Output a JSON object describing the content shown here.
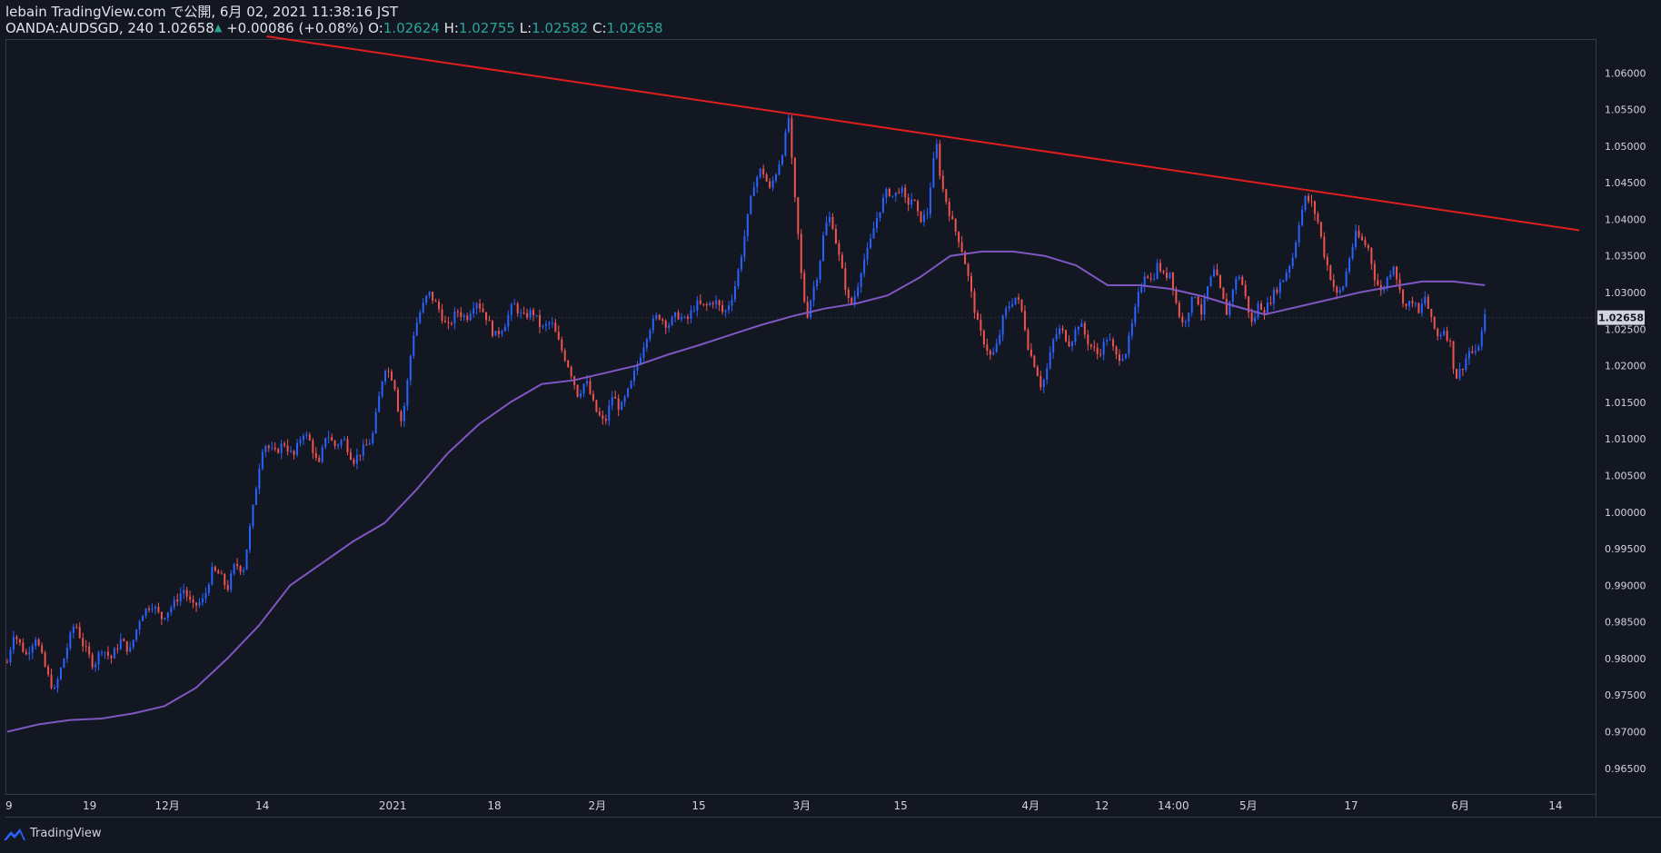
{
  "header": {
    "line1": "lebain TradingView.com で公開, 6月 02, 2021 11:38:16 JST",
    "symbol": "OANDA:AUDSGD, 240",
    "price": "1.02658",
    "change": "+0.00086 (+0.08%)",
    "o_label": "O:",
    "o_value": "1.02624",
    "h_label": "H:",
    "h_value": "1.02755",
    "l_label": "L:",
    "l_value": "1.02582",
    "c_label": "C:",
    "c_value": "1.02658"
  },
  "footer": {
    "brand": "TradingView",
    "icon": "tradingview-logo-icon"
  },
  "colors": {
    "background": "#131722",
    "up": "#2962ff",
    "down": "#ef5350",
    "trendline": "#e01e1e",
    "ma": "#7e57c2",
    "grid_border": "#363a45",
    "price_tag": "#d1d4dc"
  },
  "chart_data": {
    "type": "candlestick",
    "symbol": "OANDA:AUDSGD",
    "timeframe": "240",
    "last_price": 1.02658,
    "last_price_label": "1.02658",
    "ylim": [
      0.9615,
      1.0645
    ],
    "y_ticks": [
      "1.06000",
      "1.05500",
      "1.05000",
      "1.04500",
      "1.04000",
      "1.03500",
      "1.03000",
      "1.02500",
      "1.02000",
      "1.01500",
      "1.01000",
      "1.00500",
      "1.00000",
      "0.99500",
      "0.99000",
      "0.98500",
      "0.98000",
      "0.97500",
      "0.97000",
      "0.96500"
    ],
    "x_ticks": [
      {
        "label": "9",
        "pos": 0.0
      },
      {
        "label": "19",
        "pos": 0.0524
      },
      {
        "label": "12月",
        "pos": 0.1018
      },
      {
        "label": "14",
        "pos": 0.1623
      },
      {
        "label": "2021",
        "pos": 0.2452
      },
      {
        "label": "18",
        "pos": 0.3098
      },
      {
        "label": "2月",
        "pos": 0.3753
      },
      {
        "label": "15",
        "pos": 0.4399
      },
      {
        "label": "3月",
        "pos": 0.5054
      },
      {
        "label": "15",
        "pos": 0.5683
      },
      {
        "label": "4月",
        "pos": 0.651
      },
      {
        "label": "12",
        "pos": 0.6963
      },
      {
        "label": "14:00",
        "pos": 0.7418
      },
      {
        "label": "5月",
        "pos": 0.7895
      },
      {
        "label": "17",
        "pos": 0.8549
      },
      {
        "label": "6月",
        "pos": 0.9244
      },
      {
        "label": "14",
        "pos": 0.9849
      }
    ],
    "price_path": [
      [
        0.0,
        0.9795
      ],
      [
        0.004,
        0.9835
      ],
      [
        0.012,
        0.9805
      ],
      [
        0.018,
        0.983
      ],
      [
        0.026,
        0.9775
      ],
      [
        0.03,
        0.9755
      ],
      [
        0.038,
        0.9815
      ],
      [
        0.043,
        0.985
      ],
      [
        0.048,
        0.982
      ],
      [
        0.055,
        0.979
      ],
      [
        0.06,
        0.9815
      ],
      [
        0.066,
        0.98
      ],
      [
        0.072,
        0.9825
      ],
      [
        0.078,
        0.981
      ],
      [
        0.085,
        0.986
      ],
      [
        0.092,
        0.9875
      ],
      [
        0.098,
        0.9855
      ],
      [
        0.106,
        0.9875
      ],
      [
        0.112,
        0.9895
      ],
      [
        0.118,
        0.987
      ],
      [
        0.125,
        0.988
      ],
      [
        0.13,
        0.992
      ],
      [
        0.135,
        0.9915
      ],
      [
        0.14,
        0.9895
      ],
      [
        0.145,
        0.993
      ],
      [
        0.15,
        0.992
      ],
      [
        0.153,
        0.996
      ],
      [
        0.156,
        1.0
      ],
      [
        0.16,
        1.006
      ],
      [
        0.163,
        1.0095
      ],
      [
        0.17,
        1.008
      ],
      [
        0.176,
        1.0095
      ],
      [
        0.182,
        1.0075
      ],
      [
        0.188,
        1.011
      ],
      [
        0.193,
        1.0095
      ],
      [
        0.198,
        1.006
      ],
      [
        0.203,
        1.011
      ],
      [
        0.208,
        1.009
      ],
      [
        0.214,
        1.01
      ],
      [
        0.22,
        1.007
      ],
      [
        0.226,
        1.0085
      ],
      [
        0.232,
        1.01
      ],
      [
        0.236,
        1.015
      ],
      [
        0.24,
        1.02
      ],
      [
        0.246,
        1.018
      ],
      [
        0.25,
        1.012
      ],
      [
        0.253,
        1.015
      ],
      [
        0.258,
        1.024
      ],
      [
        0.262,
        1.027
      ],
      [
        0.268,
        1.03
      ],
      [
        0.274,
        1.028
      ],
      [
        0.28,
        1.025
      ],
      [
        0.286,
        1.0275
      ],
      [
        0.292,
        1.0265
      ],
      [
        0.298,
        1.029
      ],
      [
        0.304,
        1.027
      ],
      [
        0.31,
        1.024
      ],
      [
        0.316,
        1.0255
      ],
      [
        0.322,
        1.0285
      ],
      [
        0.328,
        1.0265
      ],
      [
        0.334,
        1.0275
      ],
      [
        0.34,
        1.025
      ],
      [
        0.346,
        1.026
      ],
      [
        0.352,
        1.0225
      ],
      [
        0.358,
        1.0195
      ],
      [
        0.363,
        1.016
      ],
      [
        0.368,
        1.018
      ],
      [
        0.374,
        1.014
      ],
      [
        0.38,
        1.012
      ],
      [
        0.385,
        1.016
      ],
      [
        0.39,
        1.014
      ],
      [
        0.396,
        1.017
      ],
      [
        0.402,
        1.021
      ],
      [
        0.408,
        1.025
      ],
      [
        0.414,
        1.027
      ],
      [
        0.42,
        1.0255
      ],
      [
        0.426,
        1.027
      ],
      [
        0.432,
        1.026
      ],
      [
        0.438,
        1.0285
      ],
      [
        0.444,
        1.028
      ],
      [
        0.45,
        1.029
      ],
      [
        0.456,
        1.027
      ],
      [
        0.462,
        1.03
      ],
      [
        0.466,
        1.034
      ],
      [
        0.47,
        1.039
      ],
      [
        0.475,
        1.045
      ],
      [
        0.48,
        1.047
      ],
      [
        0.485,
        1.044
      ],
      [
        0.49,
        1.047
      ],
      [
        0.494,
        1.05
      ],
      [
        0.497,
        1.054
      ],
      [
        0.5,
        1.045
      ],
      [
        0.503,
        1.038
      ],
      [
        0.506,
        1.03
      ],
      [
        0.509,
        1.027
      ],
      [
        0.512,
        1.03
      ],
      [
        0.516,
        1.033
      ],
      [
        0.52,
        1.039
      ],
      [
        0.524,
        1.0405
      ],
      [
        0.528,
        1.036
      ],
      [
        0.532,
        1.032
      ],
      [
        0.536,
        1.028
      ],
      [
        0.54,
        1.03
      ],
      [
        0.544,
        1.034
      ],
      [
        0.548,
        1.036
      ],
      [
        0.552,
        1.0395
      ],
      [
        0.556,
        1.042
      ],
      [
        0.56,
        1.044
      ],
      [
        0.564,
        1.043
      ],
      [
        0.568,
        1.0445
      ],
      [
        0.572,
        1.042
      ],
      [
        0.576,
        1.043
      ],
      [
        0.58,
        1.04
      ],
      [
        0.585,
        1.0405
      ],
      [
        0.588,
        1.046
      ],
      [
        0.591,
        1.0505
      ],
      [
        0.594,
        1.045
      ],
      [
        0.598,
        1.042
      ],
      [
        0.602,
        1.039
      ],
      [
        0.606,
        1.037
      ],
      [
        0.61,
        1.0335
      ],
      [
        0.614,
        1.029
      ],
      [
        0.618,
        1.025
      ],
      [
        0.622,
        1.023
      ],
      [
        0.626,
        1.021
      ],
      [
        0.63,
        1.023
      ],
      [
        0.634,
        1.027
      ],
      [
        0.638,
        1.0285
      ],
      [
        0.642,
        1.0295
      ],
      [
        0.646,
        1.027
      ],
      [
        0.65,
        1.022
      ],
      [
        0.654,
        1.02
      ],
      [
        0.658,
        1.017
      ],
      [
        0.662,
        1.02
      ],
      [
        0.666,
        1.024
      ],
      [
        0.67,
        1.025
      ],
      [
        0.676,
        1.023
      ],
      [
        0.682,
        1.026
      ],
      [
        0.688,
        1.023
      ],
      [
        0.694,
        1.0215
      ],
      [
        0.7,
        1.024
      ],
      [
        0.706,
        1.021
      ],
      [
        0.712,
        1.022
      ],
      [
        0.716,
        1.026
      ],
      [
        0.72,
        1.03
      ],
      [
        0.724,
        1.033
      ],
      [
        0.728,
        1.0315
      ],
      [
        0.732,
        1.034
      ],
      [
        0.736,
        1.032
      ],
      [
        0.74,
        1.033
      ],
      [
        0.744,
        1.028
      ],
      [
        0.748,
        1.0255
      ],
      [
        0.752,
        1.028
      ],
      [
        0.756,
        1.03
      ],
      [
        0.76,
        1.027
      ],
      [
        0.764,
        1.031
      ],
      [
        0.768,
        1.033
      ],
      [
        0.772,
        1.03
      ],
      [
        0.776,
        1.027
      ],
      [
        0.78,
        1.031
      ],
      [
        0.784,
        1.0325
      ],
      [
        0.788,
        1.029
      ],
      [
        0.792,
        1.0255
      ],
      [
        0.796,
        1.0285
      ],
      [
        0.8,
        1.0275
      ],
      [
        0.806,
        1.03
      ],
      [
        0.812,
        1.032
      ],
      [
        0.818,
        1.035
      ],
      [
        0.822,
        1.04
      ],
      [
        0.826,
        1.043
      ],
      [
        0.83,
        1.042
      ],
      [
        0.834,
        1.0395
      ],
      [
        0.838,
        1.035
      ],
      [
        0.842,
        1.032
      ],
      [
        0.846,
        1.0295
      ],
      [
        0.85,
        1.031
      ],
      [
        0.854,
        1.035
      ],
      [
        0.858,
        1.038
      ],
      [
        0.862,
        1.037
      ],
      [
        0.866,
        1.036
      ],
      [
        0.87,
        1.032
      ],
      [
        0.874,
        1.03
      ],
      [
        0.878,
        1.032
      ],
      [
        0.882,
        1.034
      ],
      [
        0.886,
        1.03
      ],
      [
        0.89,
        1.028
      ],
      [
        0.894,
        1.029
      ],
      [
        0.898,
        1.027
      ],
      [
        0.902,
        1.0295
      ],
      [
        0.906,
        1.026
      ],
      [
        0.91,
        1.024
      ],
      [
        0.914,
        1.025
      ],
      [
        0.918,
        1.023
      ],
      [
        0.92,
        1.02
      ],
      [
        0.922,
        1.0185
      ],
      [
        0.926,
        1.02
      ],
      [
        0.93,
        1.022
      ],
      [
        0.934,
        1.0215
      ],
      [
        0.938,
        1.0245
      ],
      [
        0.94,
        1.0266
      ]
    ],
    "moving_average": [
      [
        0.0,
        0.97
      ],
      [
        0.02,
        0.971
      ],
      [
        0.04,
        0.9716
      ],
      [
        0.06,
        0.9718
      ],
      [
        0.08,
        0.9725
      ],
      [
        0.1,
        0.9735
      ],
      [
        0.12,
        0.976
      ],
      [
        0.14,
        0.98
      ],
      [
        0.16,
        0.9845
      ],
      [
        0.18,
        0.99
      ],
      [
        0.2,
        0.993
      ],
      [
        0.22,
        0.996
      ],
      [
        0.24,
        0.9985
      ],
      [
        0.26,
        1.003
      ],
      [
        0.28,
        1.008
      ],
      [
        0.3,
        1.012
      ],
      [
        0.32,
        1.015
      ],
      [
        0.34,
        1.0175
      ],
      [
        0.36,
        1.018
      ],
      [
        0.38,
        1.019
      ],
      [
        0.4,
        1.02
      ],
      [
        0.42,
        1.0215
      ],
      [
        0.44,
        1.0228
      ],
      [
        0.46,
        1.0242
      ],
      [
        0.48,
        1.0256
      ],
      [
        0.5,
        1.0268
      ],
      [
        0.52,
        1.0278
      ],
      [
        0.54,
        1.0285
      ],
      [
        0.56,
        1.0296
      ],
      [
        0.58,
        1.032
      ],
      [
        0.6,
        1.035
      ],
      [
        0.62,
        1.0356
      ],
      [
        0.64,
        1.0356
      ],
      [
        0.66,
        1.035
      ],
      [
        0.68,
        1.0337
      ],
      [
        0.7,
        1.031
      ],
      [
        0.72,
        1.031
      ],
      [
        0.74,
        1.0305
      ],
      [
        0.76,
        1.0295
      ],
      [
        0.78,
        1.0282
      ],
      [
        0.8,
        1.027
      ],
      [
        0.82,
        1.028
      ],
      [
        0.84,
        1.029
      ],
      [
        0.86,
        1.03
      ],
      [
        0.88,
        1.0308
      ],
      [
        0.9,
        1.0315
      ],
      [
        0.92,
        1.0315
      ],
      [
        0.94,
        1.031
      ]
    ],
    "trendline": [
      [
        0.165,
        1.065
      ],
      [
        1.0,
        1.0385
      ]
    ]
  }
}
